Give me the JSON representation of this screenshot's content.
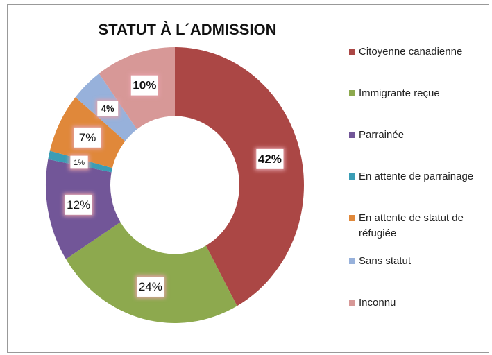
{
  "chart_data": {
    "type": "donut",
    "title": "STATUT À L´ADMISSION",
    "categories": [
      "Citoyenne canadienne",
      "Immigrante reçue",
      "Parrainée",
      "En attente de parrainage",
      "En attente de statut de réfugiée",
      "Sans statut",
      "Inconnu"
    ],
    "values": [
      42,
      24,
      12,
      1,
      7,
      4,
      10
    ],
    "value_labels": [
      "42%",
      "24%",
      "12%",
      "1%",
      "7%",
      "4%",
      "10%"
    ],
    "colors": [
      "#ab4745",
      "#8da94e",
      "#725698",
      "#3a9db5",
      "#e0883a",
      "#97b1db",
      "#d79897"
    ],
    "legend": "right"
  }
}
